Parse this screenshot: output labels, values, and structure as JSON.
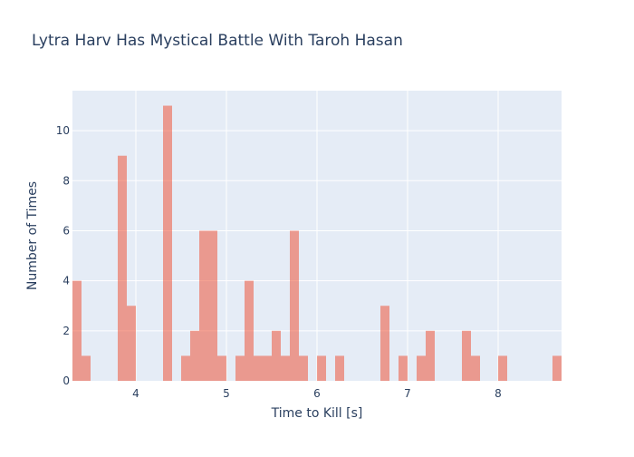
{
  "chart_data": {
    "type": "bar",
    "title": "Lytra Harv Has Mystical Battle With Taroh Hasan",
    "xlabel": "Time to Kill [s]",
    "ylabel": "Number of Times",
    "xlim": [
      3.3,
      8.7
    ],
    "ylim": [
      0,
      11.6
    ],
    "bin_width": 0.1,
    "grid": true,
    "colors": {
      "plot_bg": "#E5ECF6",
      "bar": "#EF553B",
      "bar_opacity": 0.55,
      "grid": "#ffffff",
      "text": "#2a3f5f",
      "title": "#2a3f5f"
    },
    "x_ticks": [
      {
        "value": 4,
        "label": "4"
      },
      {
        "value": 5,
        "label": "5"
      },
      {
        "value": 6,
        "label": "6"
      },
      {
        "value": 7,
        "label": "7"
      },
      {
        "value": 8,
        "label": "8"
      }
    ],
    "y_ticks": [
      {
        "value": 0,
        "label": "0"
      },
      {
        "value": 2,
        "label": "2"
      },
      {
        "value": 4,
        "label": "4"
      },
      {
        "value": 6,
        "label": "6"
      },
      {
        "value": 8,
        "label": "8"
      },
      {
        "value": 10,
        "label": "10"
      }
    ],
    "bins": [
      {
        "x0": 3.3,
        "x1": 3.4,
        "count": 4
      },
      {
        "x0": 3.4,
        "x1": 3.5,
        "count": 1
      },
      {
        "x0": 3.8,
        "x1": 3.9,
        "count": 9
      },
      {
        "x0": 3.9,
        "x1": 4.0,
        "count": 3
      },
      {
        "x0": 4.3,
        "x1": 4.4,
        "count": 11
      },
      {
        "x0": 4.5,
        "x1": 4.6,
        "count": 1
      },
      {
        "x0": 4.6,
        "x1": 4.7,
        "count": 2
      },
      {
        "x0": 4.7,
        "x1": 4.8,
        "count": 6
      },
      {
        "x0": 4.8,
        "x1": 4.9,
        "count": 6
      },
      {
        "x0": 4.9,
        "x1": 5.0,
        "count": 1
      },
      {
        "x0": 5.1,
        "x1": 5.2,
        "count": 1
      },
      {
        "x0": 5.2,
        "x1": 5.3,
        "count": 4
      },
      {
        "x0": 5.3,
        "x1": 5.4,
        "count": 1
      },
      {
        "x0": 5.4,
        "x1": 5.5,
        "count": 1
      },
      {
        "x0": 5.5,
        "x1": 5.6,
        "count": 2
      },
      {
        "x0": 5.6,
        "x1": 5.7,
        "count": 1
      },
      {
        "x0": 5.7,
        "x1": 5.8,
        "count": 6
      },
      {
        "x0": 5.8,
        "x1": 5.9,
        "count": 1
      },
      {
        "x0": 6.0,
        "x1": 6.1,
        "count": 1
      },
      {
        "x0": 6.2,
        "x1": 6.3,
        "count": 1
      },
      {
        "x0": 6.7,
        "x1": 6.8,
        "count": 3
      },
      {
        "x0": 6.9,
        "x1": 7.0,
        "count": 1
      },
      {
        "x0": 7.1,
        "x1": 7.2,
        "count": 1
      },
      {
        "x0": 7.2,
        "x1": 7.3,
        "count": 2
      },
      {
        "x0": 7.6,
        "x1": 7.7,
        "count": 2
      },
      {
        "x0": 7.7,
        "x1": 7.8,
        "count": 1
      },
      {
        "x0": 8.0,
        "x1": 8.1,
        "count": 1
      },
      {
        "x0": 8.6,
        "x1": 8.7,
        "count": 1
      }
    ]
  }
}
